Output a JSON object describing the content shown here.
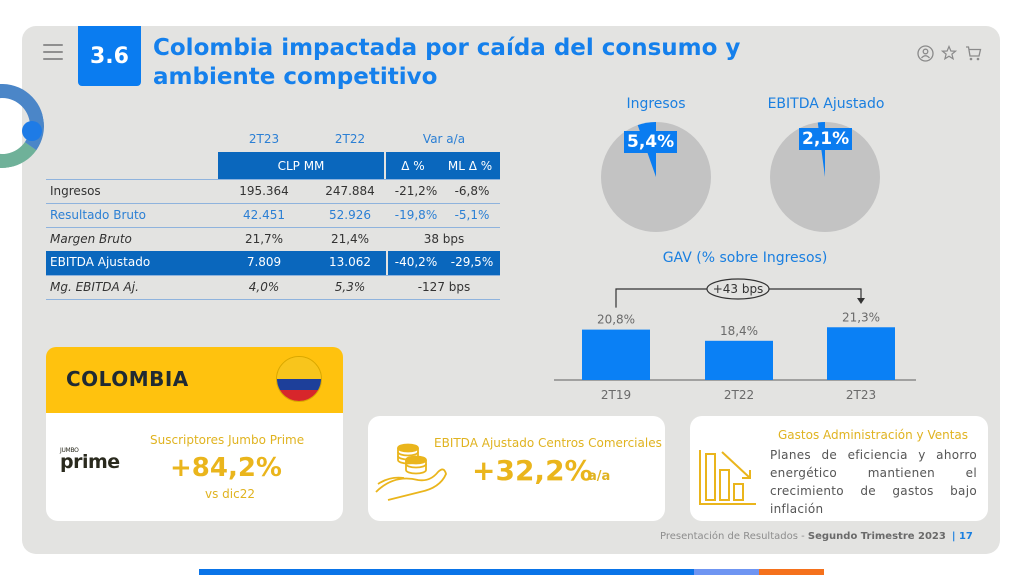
{
  "header": {
    "section_number": "3.6",
    "title_line1": "Colombia impactada por caída del consumo y",
    "title_line2": "ambiente competitivo",
    "icons": [
      "menu-icon",
      "user-icon",
      "star-icon",
      "cart-icon"
    ]
  },
  "table": {
    "year_headers": [
      "2T23",
      "2T22"
    ],
    "var_header": "Var a/a",
    "units_header": "CLP MM",
    "delta_header": "Δ %",
    "ml_delta_header": "ML Δ %",
    "rows": [
      {
        "label": "Ingresos",
        "v2t23": "195.364",
        "v2t22": "247.884",
        "delta": "-21,2%",
        "ml_delta": "-6,8%"
      },
      {
        "label": "Resultado Bruto",
        "v2t23": "42.451",
        "v2t22": "52.926",
        "delta": "-19,8%",
        "ml_delta": "-5,1%"
      },
      {
        "label": "Margen Bruto",
        "v2t23": "21,7%",
        "v2t22": "21,4%",
        "var": "38 bps"
      },
      {
        "label": "EBITDA Ajustado",
        "v2t23": "7.809",
        "v2t22": "13.062",
        "delta": "-40,2%",
        "ml_delta": "-29,5%"
      },
      {
        "label": "Mg. EBITDA Aj.",
        "v2t23": "4,0%",
        "v2t22": "5,3%",
        "var": "-127 bps"
      }
    ]
  },
  "pies": [
    {
      "title": "Ingresos",
      "label": "5,4%",
      "value": 5.4
    },
    {
      "title": "EBITDA Ajustado",
      "label": "2,1%",
      "value": 2.1
    }
  ],
  "chart_data": {
    "type": "bar",
    "title": "GAV (% sobre Ingresos)",
    "categories": [
      "2T19",
      "2T22",
      "2T23"
    ],
    "values": [
      20.8,
      18.4,
      21.3
    ],
    "value_labels": [
      "20,8%",
      "18,4%",
      "21,3%"
    ],
    "annotation": "+43 bps",
    "annotation_from": "2T19",
    "annotation_to": "2T23",
    "xlabel": "",
    "ylabel": "",
    "ylim": [
      0,
      25
    ],
    "grid": false
  },
  "colombia": {
    "name": "COLOMBIA",
    "flag_colors": {
      "yellow": "#f8c51c",
      "blue": "#1d3f9a",
      "red": "#d7262b"
    }
  },
  "cards": {
    "prime": {
      "logo_small": "JUMBO",
      "logo_big": "prime",
      "label": "Suscriptores Jumbo Prime",
      "value": "+84,2%",
      "sub": "vs dic22"
    },
    "malls": {
      "label": "EBITDA Ajustado Centros Comerciales",
      "value": "+32,2%",
      "suffix": "a/a"
    },
    "gav": {
      "label": "Gastos Administración y Ventas",
      "description": "Planes de eficiencia y ahorro energético mantienen el crecimiento de gastos bajo inflación"
    }
  },
  "footer": {
    "text": "Presentación de Resultados - ",
    "bold": "Segundo Trimestre 2023",
    "page": "| 17"
  },
  "colors": {
    "accent_blue": "#0a7cf0",
    "table_blue": "#0a67bd",
    "gold": "#ffc20e",
    "pie_gray": "#c3c3c3",
    "bar_blue": "#0a80f5",
    "bottom_bar": [
      "#0a74e8",
      "#6f95f2",
      "#f5711c"
    ]
  }
}
